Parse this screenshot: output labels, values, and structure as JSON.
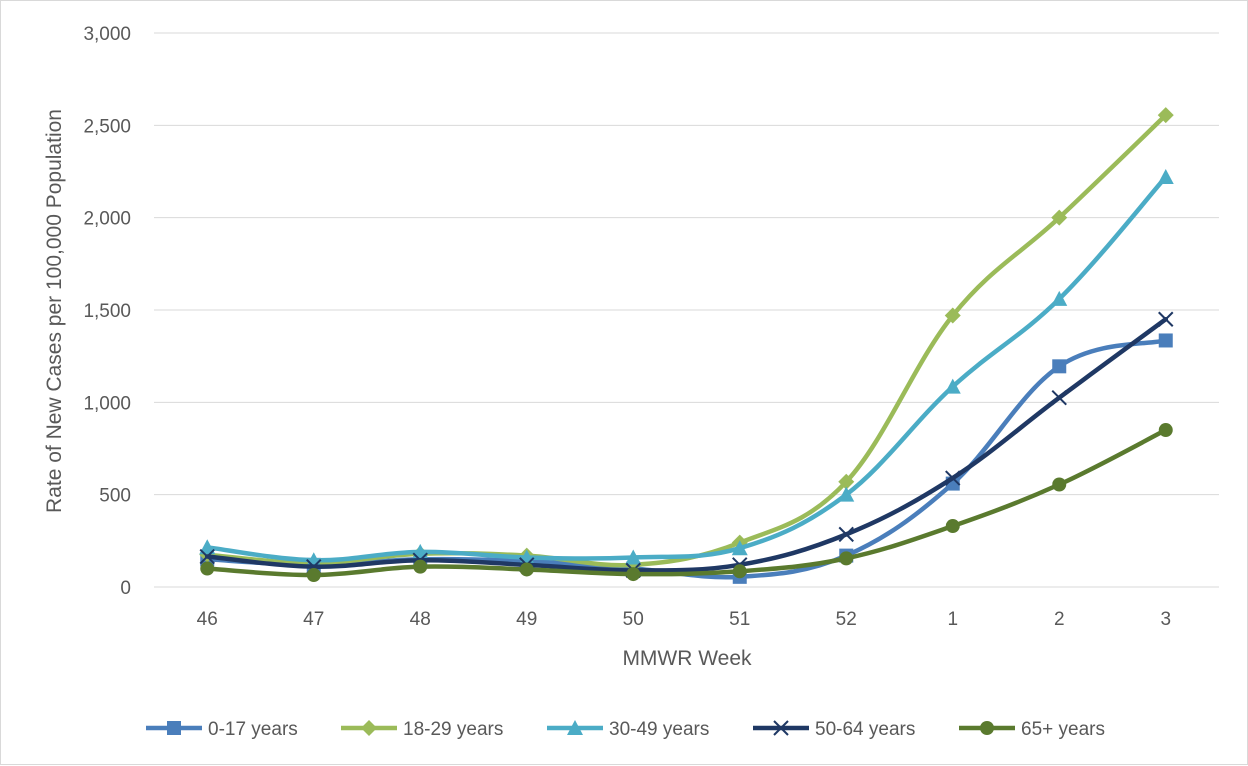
{
  "chart_data": {
    "type": "line",
    "title": "",
    "xlabel": "MMWR Week",
    "ylabel": "Rate of New Cases per 100,000 Population",
    "categories": [
      "46",
      "47",
      "48",
      "49",
      "50",
      "51",
      "52",
      "1",
      "2",
      "3"
    ],
    "ylim": [
      0,
      3000
    ],
    "yticks": [
      0,
      500,
      1000,
      1500,
      2000,
      2500,
      3000
    ],
    "ytick_labels": [
      "0",
      "500",
      "1,000",
      "1,500",
      "2,000",
      "2,500",
      "3,000"
    ],
    "grid": "horizontal",
    "legend_position": "bottom",
    "series": [
      {
        "name": "0-17 years",
        "color": "#4a7ebb",
        "marker": "square",
        "values": [
          150,
          120,
          150,
          140,
          100,
          55,
          170,
          560,
          1195,
          1335
        ]
      },
      {
        "name": "18-29 years",
        "color": "#9bbb59",
        "marker": "diamond",
        "values": [
          175,
          130,
          180,
          170,
          120,
          240,
          570,
          1470,
          2000,
          2555
        ]
      },
      {
        "name": "30-49 years",
        "color": "#4bacc6",
        "marker": "triangle",
        "values": [
          215,
          145,
          190,
          160,
          160,
          210,
          500,
          1085,
          1560,
          2220
        ]
      },
      {
        "name": "50-64 years",
        "color": "#1f3864",
        "marker": "x",
        "values": [
          165,
          110,
          145,
          120,
          90,
          120,
          285,
          590,
          1025,
          1450
        ]
      },
      {
        "name": "65+ years",
        "color": "#5a7a2e",
        "marker": "circle",
        "values": [
          100,
          65,
          110,
          95,
          70,
          85,
          155,
          330,
          555,
          850
        ]
      }
    ]
  }
}
